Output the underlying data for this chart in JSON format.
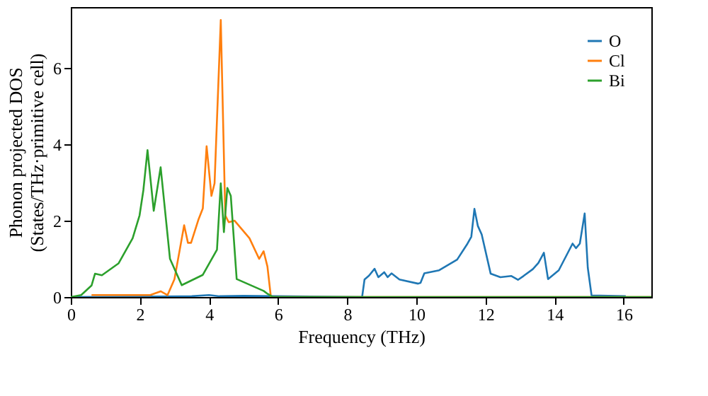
{
  "chart_data": {
    "type": "line",
    "xlabel": "Frequency (THz)",
    "ylabel": "Phonon projected DOS\n(States/THz·primitive cell)",
    "xlim": [
      0,
      16.8
    ],
    "ylim": [
      0,
      7.6
    ],
    "xticks": [
      0,
      2,
      4,
      6,
      8,
      10,
      12,
      14,
      16
    ],
    "yticks": [
      0,
      2,
      4,
      6
    ],
    "grid": false,
    "legend": "top right",
    "line_style": "solid",
    "marker": "none",
    "series": [
      {
        "name": "O",
        "color": "#1f77b4",
        "x": [
          0,
          3.5,
          4.0,
          4.3,
          5.0,
          8.43,
          8.5,
          8.63,
          8.79,
          8.9,
          9.07,
          9.17,
          9.28,
          9.51,
          10.05,
          10.12,
          10.23,
          10.66,
          11.18,
          11.48,
          11.59,
          11.68,
          11.78,
          11.89,
          12.15,
          12.43,
          12.75,
          12.94,
          13.1,
          13.37,
          13.53,
          13.69,
          13.81,
          14.12,
          14.52,
          14.62,
          14.73,
          14.87,
          14.96,
          15.07,
          16.06
        ],
        "values": [
          0,
          0.02,
          0.05,
          0.02,
          0.03,
          0,
          0.46,
          0.56,
          0.74,
          0.52,
          0.65,
          0.52,
          0.62,
          0.46,
          0.35,
          0.37,
          0.62,
          0.7,
          0.98,
          1.4,
          1.58,
          2.31,
          1.86,
          1.64,
          0.61,
          0.52,
          0.55,
          0.45,
          0.55,
          0.73,
          0.89,
          1.16,
          0.47,
          0.7,
          1.4,
          1.28,
          1.4,
          2.19,
          0.77,
          0.04,
          0.02
        ]
      },
      {
        "name": "Cl",
        "color": "#ff7f0e",
        "x": [
          0.6,
          2.3,
          2.6,
          2.8,
          3.0,
          3.28,
          3.39,
          3.48,
          3.69,
          3.82,
          3.93,
          4.07,
          4.16,
          4.34,
          4.47,
          4.57,
          4.74,
          5.17,
          5.45,
          5.58,
          5.69,
          5.79,
          16.8
        ],
        "values": [
          0.05,
          0.05,
          0.15,
          0.05,
          0.47,
          1.88,
          1.42,
          1.42,
          2.02,
          2.32,
          3.95,
          2.65,
          2.98,
          7.26,
          2.14,
          1.96,
          2.0,
          1.54,
          1.0,
          1.2,
          0.8,
          0,
          0
        ]
      },
      {
        "name": "Bi",
        "color": "#2ca02c",
        "x": [
          0,
          0.3,
          0.6,
          0.7,
          0.9,
          1.38,
          1.79,
          1.99,
          2.1,
          2.22,
          2.4,
          2.6,
          2.87,
          3.21,
          3.82,
          4.23,
          4.34,
          4.43,
          4.53,
          4.63,
          4.8,
          5.58,
          5.7,
          5.85,
          16.8
        ],
        "values": [
          0,
          0.05,
          0.3,
          0.61,
          0.57,
          0.88,
          1.54,
          2.14,
          2.8,
          3.85,
          2.26,
          3.4,
          1.0,
          0.31,
          0.58,
          1.24,
          2.98,
          1.7,
          2.86,
          2.65,
          0.47,
          0.16,
          0.08,
          0,
          0
        ]
      }
    ]
  }
}
